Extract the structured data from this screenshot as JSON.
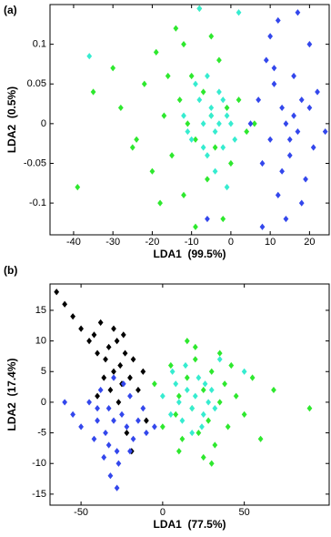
{
  "chart_data": [
    {
      "type": "scatter",
      "label": "(a)",
      "x_label": "LDA1  (99.5%)",
      "y_label": "LDA2  (0.5%)",
      "xlim": [
        -46,
        25
      ],
      "ylim": [
        -0.14,
        0.15
      ],
      "xticks": [
        -40,
        -30,
        -20,
        -10,
        0,
        10,
        20
      ],
      "yticks": [
        -0.1,
        -0.05,
        0,
        0.05,
        0.1
      ],
      "series": [
        {
          "color": "#2ee82e",
          "x": [
            -39,
            -30,
            -28,
            -25,
            -22,
            -20,
            -19,
            -17,
            -15,
            -14,
            -13,
            -12,
            -11,
            -10,
            -9,
            -8,
            -7,
            -6,
            -5,
            -4,
            -3,
            -2,
            -1,
            0,
            2,
            4,
            -18,
            -12,
            -9,
            -5,
            6,
            -24,
            -16,
            -35
          ],
          "values": [
            -0.08,
            0.07,
            0.02,
            -0.03,
            0.05,
            -0.06,
            0.09,
            0.01,
            -0.04,
            0.12,
            0.03,
            -0.09,
            0.0,
            0.06,
            -0.02,
            0.145,
            0.04,
            -0.07,
            0.01,
            -0.03,
            0.08,
            -0.12,
            0.02,
            -0.05,
            0.03,
            -0.01,
            -0.1,
            0.1,
            -0.13,
            0.11,
            0.0,
            -0.02,
            0.06,
            0.04
          ]
        },
        {
          "color": "#36ecd0",
          "x": [
            -12,
            -10,
            -8,
            -7,
            -6,
            -5,
            -4,
            -3,
            -2,
            -1,
            0,
            1,
            -9,
            -6,
            -4,
            -2,
            -7,
            -3,
            -11,
            -5,
            -36,
            -8,
            2,
            -1
          ],
          "values": [
            0.01,
            -0.02,
            0.03,
            0.0,
            -0.04,
            0.02,
            -0.01,
            0.04,
            -0.03,
            0.01,
            0.0,
            -0.02,
            0.05,
            0.06,
            -0.06,
            0.03,
            -0.03,
            0.0,
            -0.01,
            0.01,
            0.085,
            0.145,
            0.14,
            -0.08
          ]
        },
        {
          "color": "#3347ec",
          "x": [
            5,
            7,
            8,
            9,
            10,
            11,
            12,
            13,
            14,
            15,
            16,
            17,
            18,
            19,
            20,
            21,
            22,
            12,
            14,
            16,
            10,
            18,
            15,
            11,
            13,
            17,
            -6,
            8,
            20,
            24
          ],
          "values": [
            0.0,
            0.03,
            -0.05,
            0.08,
            -0.02,
            0.05,
            -0.09,
            0.02,
            0.0,
            -0.04,
            0.06,
            -0.01,
            0.03,
            -0.07,
            0.1,
            -0.03,
            0.04,
            0.13,
            -0.12,
            0.01,
            0.11,
            -0.1,
            -0.02,
            0.07,
            -0.06,
            0.14,
            -0.12,
            -0.13,
            0.02,
            -0.01
          ]
        }
      ]
    },
    {
      "type": "scatter",
      "label": "(b)",
      "x_label": "LDA1  (77.5%)",
      "y_label": "LDA2  (17.4%)",
      "xlim": [
        -69,
        102
      ],
      "ylim": [
        -16.8,
        19.3
      ],
      "xticks": [
        -50,
        0,
        50
      ],
      "yticks": [
        -15,
        -10,
        -5,
        0,
        5,
        10,
        15
      ],
      "series": [
        {
          "color": "#000000",
          "x": [
            -65,
            -60,
            -55,
            -50,
            -45,
            -42,
            -40,
            -38,
            -35,
            -33,
            -30,
            -28,
            -26,
            -25,
            -23,
            -20,
            -18,
            -15,
            -12,
            -10,
            -32,
            -27,
            -22,
            -36,
            -30,
            -24,
            -40,
            -19
          ],
          "values": [
            18,
            16,
            14,
            12,
            10,
            11,
            8,
            13,
            7,
            9,
            5,
            10,
            6,
            3,
            8,
            4,
            7,
            2,
            5,
            -3,
            2,
            0,
            -5,
            4,
            12,
            11,
            1,
            -8
          ]
        },
        {
          "color": "#2ee82e",
          "x": [
            -5,
            0,
            5,
            8,
            10,
            12,
            15,
            18,
            20,
            22,
            25,
            28,
            30,
            32,
            35,
            38,
            40,
            45,
            50,
            55,
            60,
            68,
            90,
            15,
            25,
            35,
            10,
            30,
            42,
            20
          ],
          "values": [
            3,
            -4,
            6,
            -2,
            1,
            -6,
            4,
            -1,
            7,
            -5,
            2,
            -3,
            5,
            -7,
            0,
            3,
            -4,
            1,
            -2,
            4,
            -6,
            2,
            -1,
            10,
            -9,
            8,
            -8,
            -10,
            6,
            9
          ]
        },
        {
          "color": "#36ecd0",
          "x": [
            0,
            5,
            8,
            10,
            12,
            15,
            18,
            20,
            22,
            25,
            28,
            30,
            14,
            18,
            24,
            6,
            26,
            32,
            35,
            50
          ],
          "values": [
            1,
            -2,
            3,
            0,
            -3,
            2,
            -1,
            1,
            4,
            -2,
            0,
            2,
            6,
            -5,
            -4,
            5,
            3,
            -1,
            7,
            5
          ]
        },
        {
          "color": "#3347ec",
          "x": [
            -55,
            -50,
            -45,
            -42,
            -40,
            -38,
            -35,
            -33,
            -30,
            -28,
            -25,
            -22,
            -20,
            -18,
            -15,
            -12,
            -10,
            -5,
            -32,
            -27,
            -36,
            -24,
            -30,
            -28,
            -40,
            -20,
            -60,
            -33
          ],
          "values": [
            -2,
            -4,
            0,
            -6,
            -3,
            2,
            -5,
            -1,
            -3,
            -8,
            -2,
            -4,
            1,
            -6,
            -3,
            -1,
            -5,
            -4,
            -12,
            -10,
            -9,
            3,
            4,
            -14,
            -1,
            -8,
            0,
            -7
          ]
        }
      ]
    }
  ]
}
